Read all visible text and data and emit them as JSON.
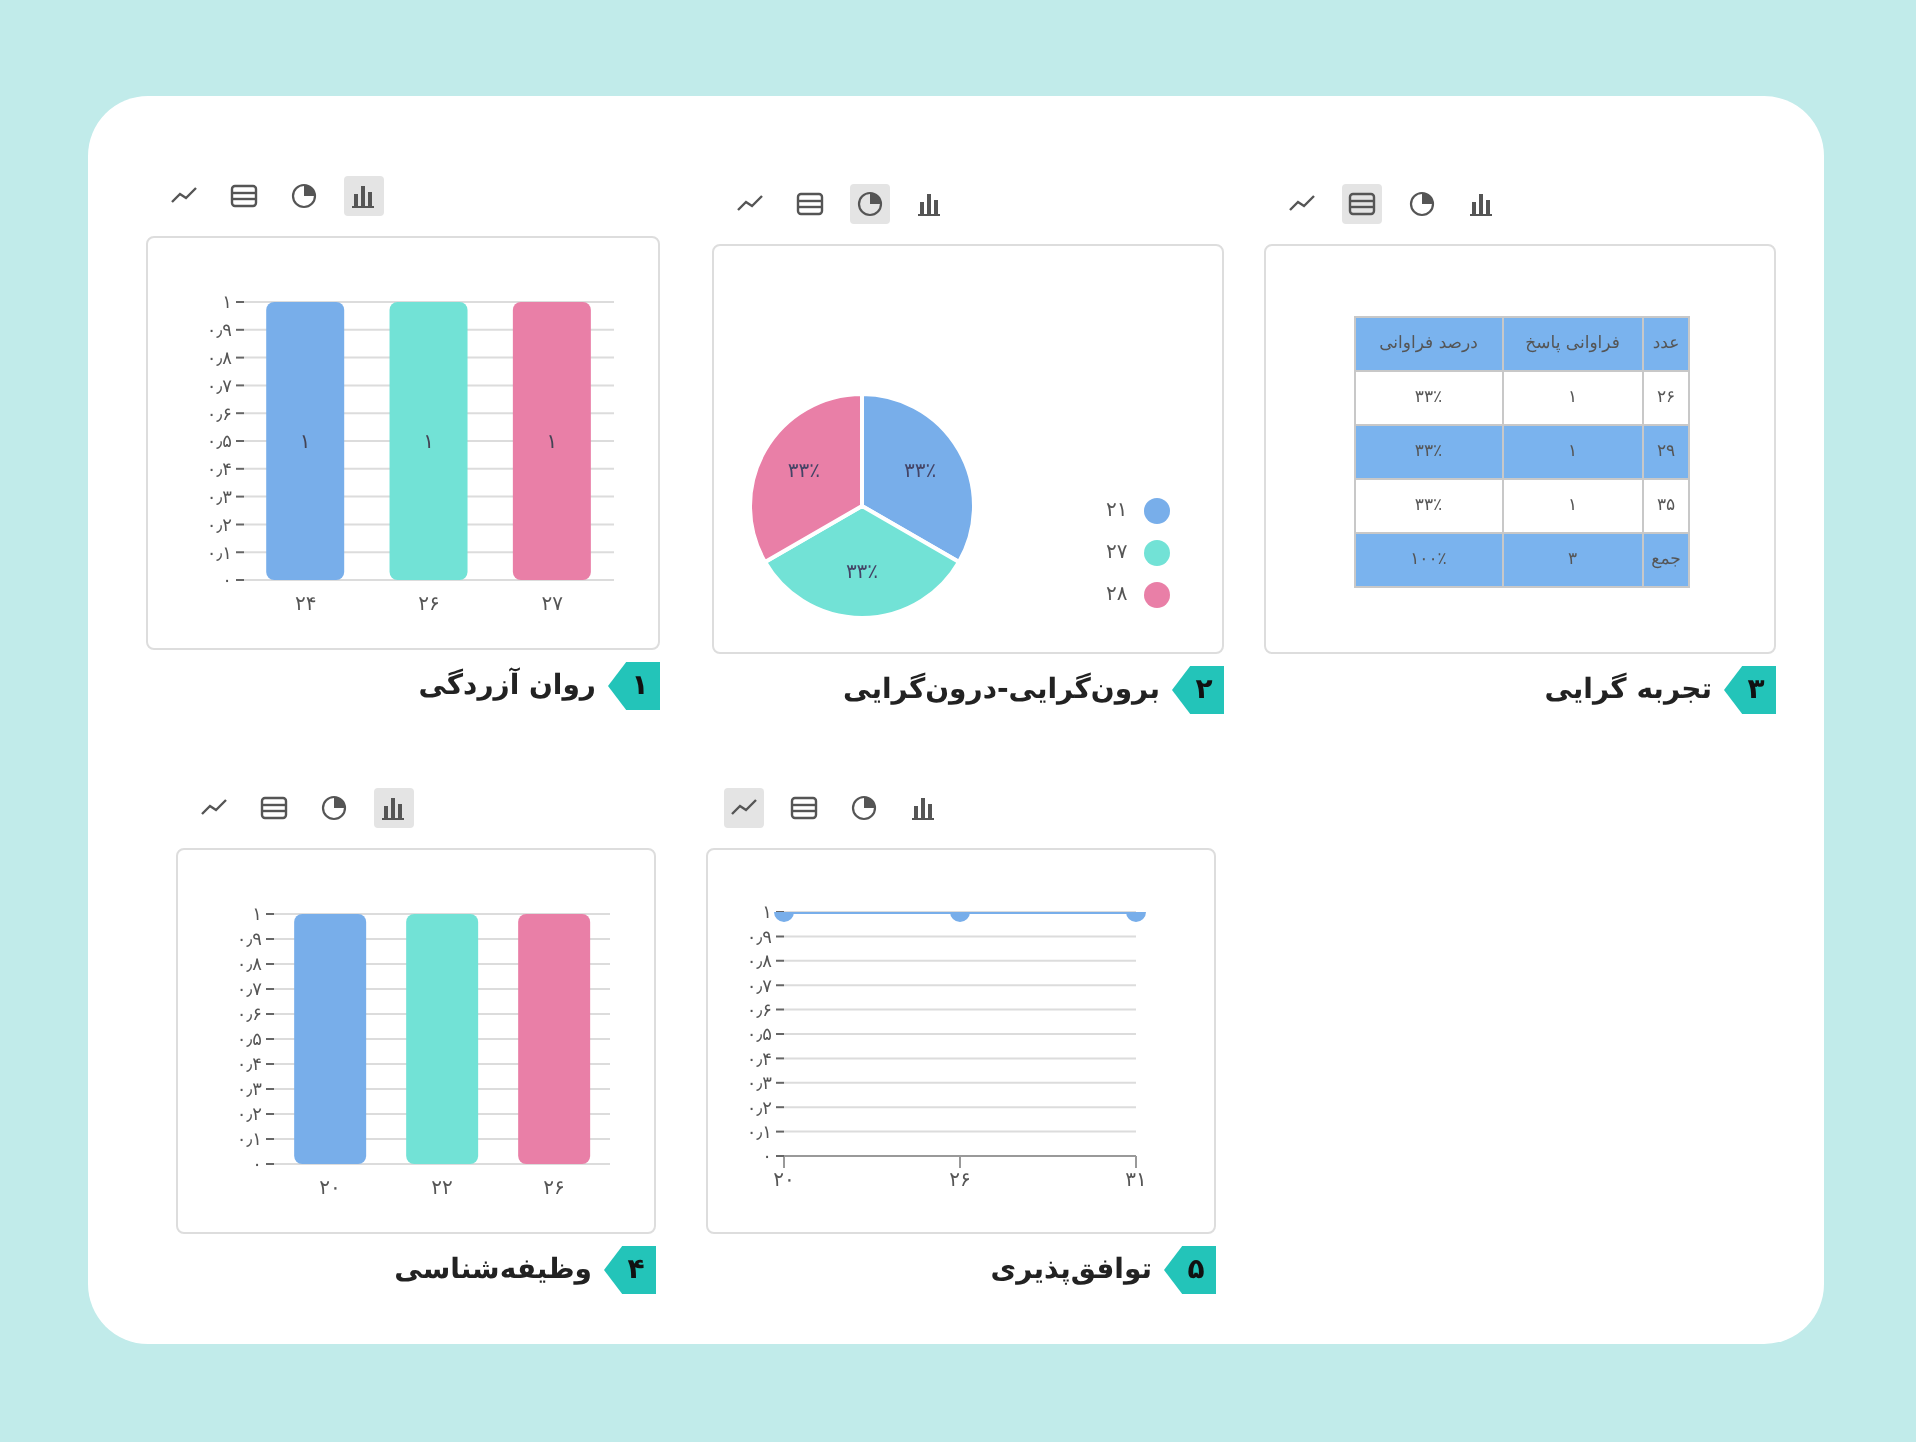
{
  "chart_data": [
    {
      "type": "bar",
      "title": "روان آزردگی",
      "annotations": [
        "۱"
      ],
      "categories": [
        "۲۴",
        "۲۶",
        "۲۷"
      ],
      "values": [
        1,
        1,
        1
      ],
      "colors": [
        "#78aeea",
        "#72e2d6",
        "#e97fa7"
      ],
      "value_labels": [
        "۱",
        "۱",
        "۱"
      ],
      "ylim": [
        0,
        1
      ],
      "yticks": [
        {
          "value": 0,
          "label": "۰"
        },
        {
          "value": 0.1,
          "label": "۰٫۱"
        },
        {
          "value": 0.2,
          "label": "۰٫۲"
        },
        {
          "value": 0.3,
          "label": "۰٫۳"
        },
        {
          "value": 0.4,
          "label": "۰٫۴"
        },
        {
          "value": 0.5,
          "label": "۰٫۵"
        },
        {
          "value": 0.6,
          "label": "۰٫۶"
        },
        {
          "value": 0.7,
          "label": "۰٫۷"
        },
        {
          "value": 0.8,
          "label": "۰٫۸"
        },
        {
          "value": 0.9,
          "label": "۰٫۹"
        },
        {
          "value": 1,
          "label": "۱"
        }
      ],
      "grid": "y"
    },
    {
      "type": "pie",
      "title": "برون‌گرایی-درون‌گرایی",
      "annotations": [
        "۲"
      ],
      "categories": [
        "۲۱",
        "۲۷",
        "۲۸"
      ],
      "values": [
        33.33,
        33.33,
        33.34
      ],
      "colors": [
        "#78aeea",
        "#72e2d6",
        "#e97fa7"
      ],
      "value_labels": [
        "۳۳٪",
        "۳۳٪",
        "۳۳٪"
      ],
      "legend": "right"
    },
    {
      "type": "other",
      "title": "تجربه گرایی",
      "annotations": [
        "۳"
      ],
      "ylabel": "عدد",
      "categories": [
        "فراوانی پاسخ",
        "درصد فراوانی"
      ],
      "y_categories": [
        "۲۶",
        "۲۹",
        "۳۵",
        "جمع"
      ],
      "cell_labels": [
        [
          "۱",
          "۳۳٪"
        ],
        [
          "۱",
          "۳۳٪"
        ],
        [
          "۱",
          "۳۳٪"
        ],
        [
          "۳",
          "۱۰۰٪"
        ]
      ]
    },
    {
      "type": "bar",
      "title": "وظیفه‌شناسی",
      "annotations": [
        "۴"
      ],
      "categories": [
        "۲۰",
        "۲۲",
        "۲۶"
      ],
      "values": [
        1,
        1,
        1
      ],
      "colors": [
        "#78aeea",
        "#72e2d6",
        "#e97fa7"
      ],
      "ylim": [
        0,
        1
      ],
      "yticks": [
        {
          "value": 0,
          "label": "۰"
        },
        {
          "value": 0.1,
          "label": "۰٫۱"
        },
        {
          "value": 0.2,
          "label": "۰٫۲"
        },
        {
          "value": 0.3,
          "label": "۰٫۳"
        },
        {
          "value": 0.4,
          "label": "۰٫۴"
        },
        {
          "value": 0.5,
          "label": "۰٫۵"
        },
        {
          "value": 0.6,
          "label": "۰٫۶"
        },
        {
          "value": 0.7,
          "label": "۰٫۷"
        },
        {
          "value": 0.8,
          "label": "۰٫۸"
        },
        {
          "value": 0.9,
          "label": "۰٫۹"
        },
        {
          "value": 1,
          "label": "۱"
        }
      ],
      "grid": "y"
    },
    {
      "type": "line",
      "title": "توافق‌پذیری",
      "annotations": [
        "۵"
      ],
      "categories": [
        "۲۰",
        "۲۶",
        "۳۱"
      ],
      "values": [
        1,
        1,
        1
      ],
      "color": "#78aeea",
      "marker": "circle",
      "ylim": [
        0,
        1
      ],
      "yticks": [
        {
          "value": 0,
          "label": "۰"
        },
        {
          "value": 0.1,
          "label": "۰٫۱"
        },
        {
          "value": 0.2,
          "label": "۰٫۲"
        },
        {
          "value": 0.3,
          "label": "۰٫۳"
        },
        {
          "value": 0.4,
          "label": "۰٫۴"
        },
        {
          "value": 0.5,
          "label": "۰٫۵"
        },
        {
          "value": 0.6,
          "label": "۰٫۶"
        },
        {
          "value": 0.7,
          "label": "۰٫۷"
        },
        {
          "value": 0.8,
          "label": "۰٫۸"
        },
        {
          "value": 0.9,
          "label": "۰٫۹"
        },
        {
          "value": 1,
          "label": "۱"
        }
      ],
      "grid": "y"
    }
  ]
}
